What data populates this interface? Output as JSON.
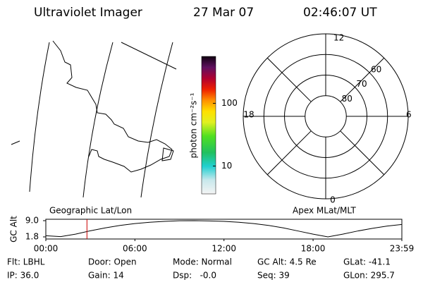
{
  "header": {
    "title": "Ultraviolet Imager",
    "date": "27 Mar 07",
    "time": "02:46:07 UT"
  },
  "map": {
    "label": "Geographic Lat/Lon"
  },
  "colorbar": {
    "label": "photon cm⁻²s⁻¹",
    "log": true,
    "lim": [
      3.6,
      560
    ],
    "ticks": [
      100,
      10
    ]
  },
  "polar": {
    "label": "Apex MLat/MLT",
    "mlt_labels": [
      "12",
      "6",
      "0",
      "18"
    ],
    "lat_rings": [
      60,
      70,
      80
    ]
  },
  "chart_data": {
    "type": "line",
    "y_label": "GC Alt",
    "x": [
      0,
      1,
      2,
      3,
      4,
      5,
      6,
      7,
      8,
      9,
      10,
      11,
      12,
      13,
      14,
      15,
      16,
      17,
      18,
      19,
      20,
      21,
      22,
      23,
      23.98
    ],
    "values": [
      2.3,
      1.9,
      3.0,
      4.5,
      5.8,
      6.9,
      7.7,
      8.3,
      8.7,
      8.95,
      9.0,
      8.9,
      8.7,
      8.3,
      7.7,
      6.9,
      5.8,
      4.4,
      3.0,
      1.8,
      3.0,
      4.4,
      5.6,
      6.6,
      7.3
    ],
    "color": "#000000",
    "marker_x": 2.77,
    "marker_color": "#cc0000",
    "xlim": [
      0,
      23.98
    ],
    "ylim": [
      1.8,
      9.0
    ],
    "xticks": [
      {
        "value": 0,
        "label": "00:00"
      },
      {
        "value": 6,
        "label": "06:00"
      },
      {
        "value": 12,
        "label": "12:00"
      },
      {
        "value": 18,
        "label": "18:00"
      },
      {
        "value": 23.98,
        "label": "23:59"
      }
    ],
    "yticks": [
      1.8,
      {
        "value": 9.0,
        "label": "9.0"
      }
    ]
  },
  "footer": [
    [
      "Flt: LBHL",
      "IP: 36.0"
    ],
    [
      "Door: Open",
      "Gain: 14"
    ],
    [
      "Mode: Normal",
      "Dsp:   -0.0"
    ],
    [
      "GC Alt: 4.5 Re",
      "Seq: 39"
    ],
    [
      "GLat: -41.1",
      "GLon: 295.7"
    ]
  ]
}
